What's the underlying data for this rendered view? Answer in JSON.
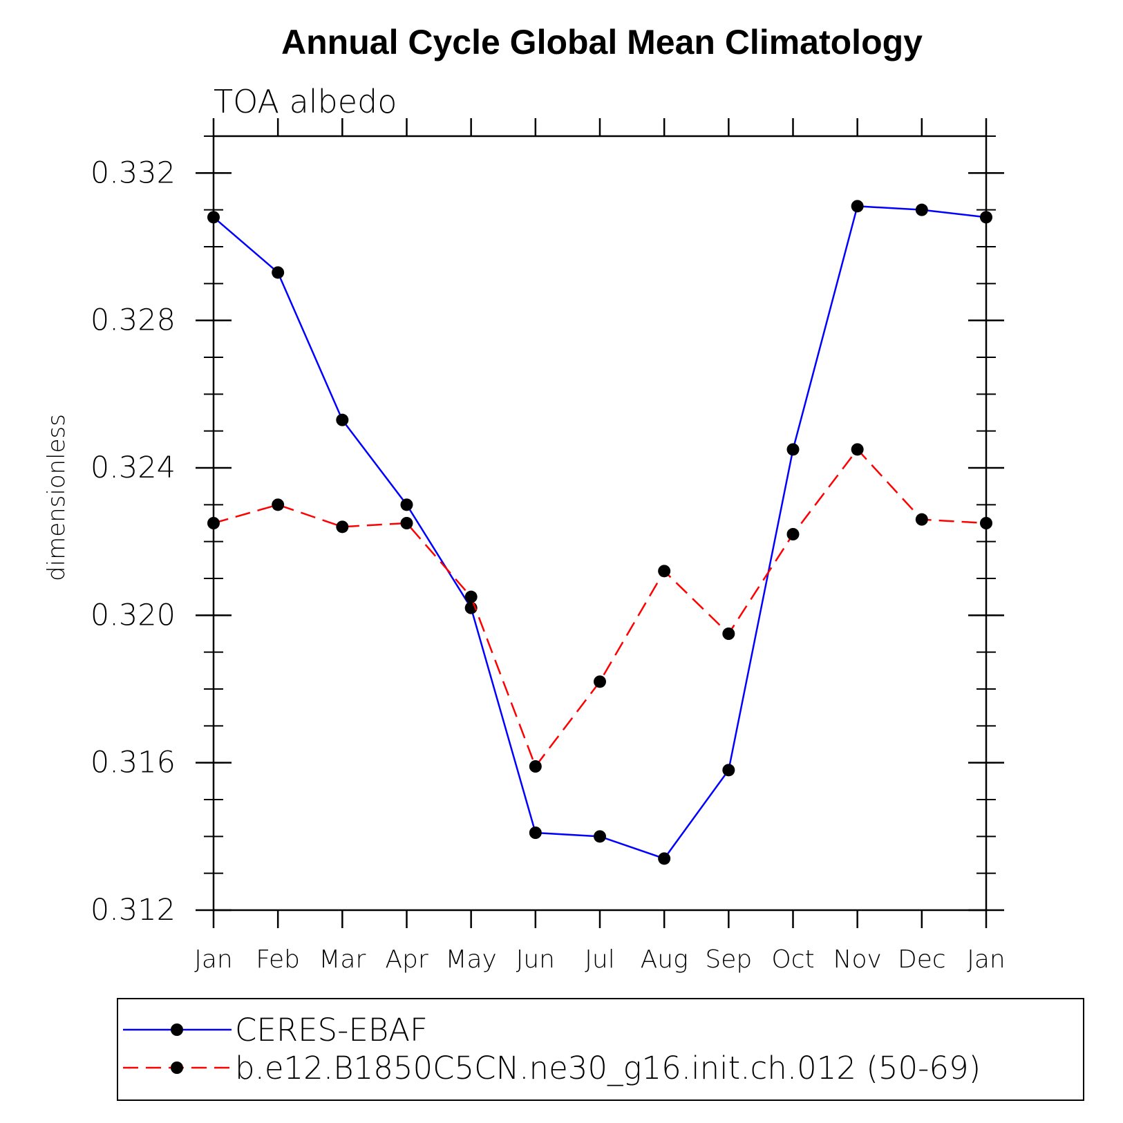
{
  "chart_data": {
    "type": "line",
    "title": "Annual Cycle Global Mean Climatology",
    "subtitle": "TOA albedo",
    "xlabel": "",
    "ylabel": "dimensionless",
    "categories": [
      "Jan",
      "Feb",
      "Mar",
      "Apr",
      "May",
      "Jun",
      "Jul",
      "Aug",
      "Sep",
      "Oct",
      "Nov",
      "Dec",
      "Jan"
    ],
    "ylim": [
      0.312,
      0.333
    ],
    "yticks": [
      "0.312",
      "0.316",
      "0.320",
      "0.324",
      "0.328",
      "0.332"
    ],
    "legend_position": "bottom",
    "series": [
      {
        "name": "CERES-EBAF",
        "color": "#0000ff",
        "dash": "solid",
        "marker": "filled-circle",
        "values": [
          0.3308,
          0.3293,
          0.3253,
          0.323,
          0.3202,
          0.3141,
          0.314,
          0.3134,
          0.3158,
          0.3245,
          0.3311,
          0.331,
          0.3308
        ]
      },
      {
        "name": "b.e12.B1850C5CN.ne30_g16.init.ch.012 (50-69)",
        "color": "#ff0000",
        "dash": "dashed",
        "marker": "filled-circle",
        "values": [
          0.3225,
          0.323,
          0.3224,
          0.3225,
          0.3205,
          0.3159,
          0.3182,
          0.3212,
          0.3195,
          0.3222,
          0.3245,
          0.3226,
          0.3225
        ]
      }
    ]
  }
}
